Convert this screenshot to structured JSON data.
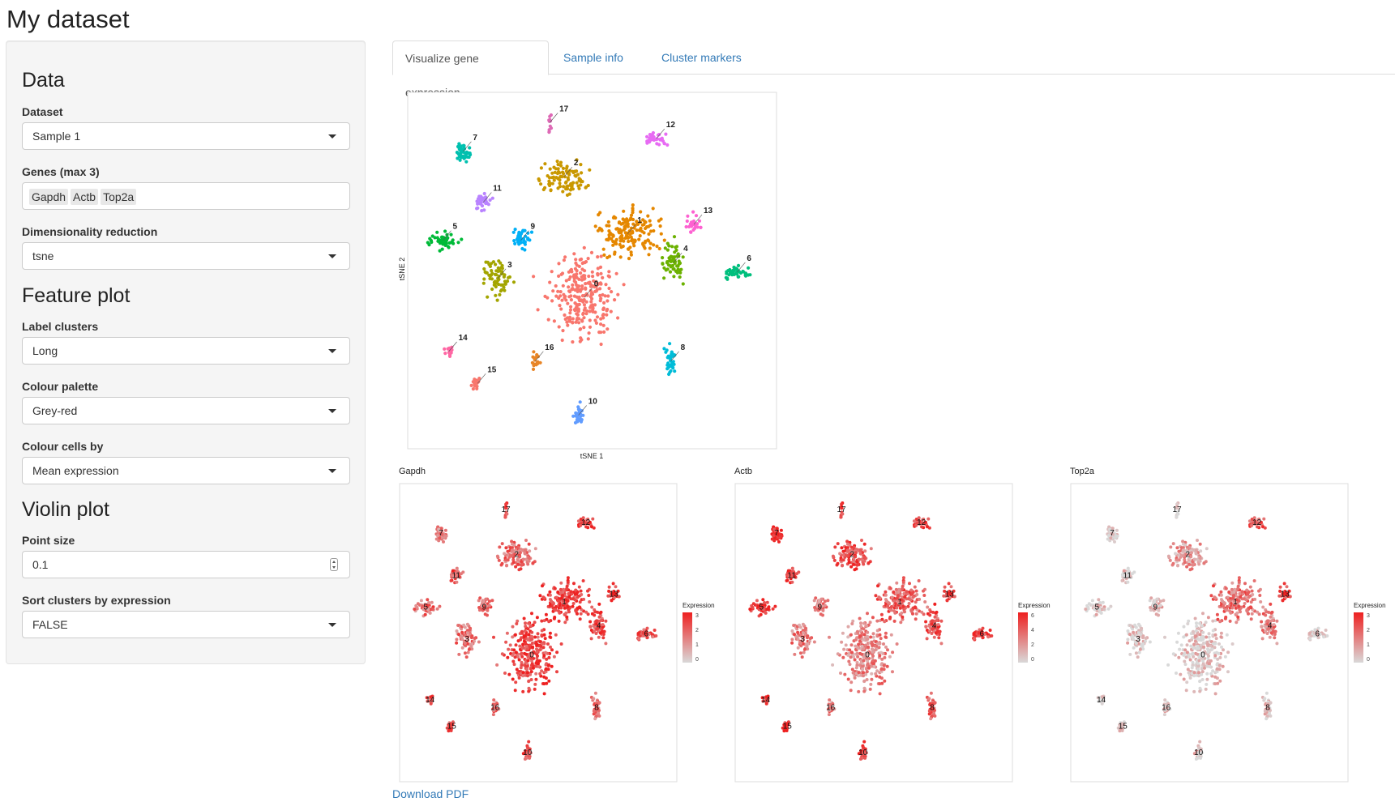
{
  "page": {
    "title": "My dataset"
  },
  "sidebar": {
    "data_section": {
      "title": "Data",
      "dataset_label": "Dataset",
      "dataset_value": "Sample 1",
      "genes_label": "Genes (max 3)",
      "genes": [
        "Gapdh",
        "Actb",
        "Top2a"
      ],
      "dimred_label": "Dimensionality reduction",
      "dimred_value": "tsne"
    },
    "feature_section": {
      "title": "Feature plot",
      "label_clusters_label": "Label clusters",
      "label_clusters_value": "Long",
      "palette_label": "Colour palette",
      "palette_value": "Grey-red",
      "colour_by_label": "Colour cells by",
      "colour_by_value": "Mean expression"
    },
    "violin_section": {
      "title": "Violin plot",
      "point_size_label": "Point size",
      "point_size_value": "0.1",
      "sort_label": "Sort clusters by expression",
      "sort_value": "FALSE"
    }
  },
  "tabs": [
    {
      "label": "Visualize gene expression",
      "active": true
    },
    {
      "label": "Sample info",
      "active": false
    },
    {
      "label": "Cluster markers",
      "active": false
    }
  ],
  "main_plot": {
    "x_label": "tSNE 1",
    "y_label": "tSNE 2"
  },
  "feature_plots": [
    {
      "gene": "Gapdh",
      "legend_title": "Expression",
      "legend_ticks": [
        "3",
        "2",
        "1",
        "0"
      ]
    },
    {
      "gene": "Actb",
      "legend_title": "Expression",
      "legend_ticks": [
        "6",
        "4",
        "2",
        "0"
      ]
    },
    {
      "gene": "Top2a",
      "legend_title": "Expression",
      "legend_ticks": [
        "3",
        "2",
        "1",
        "0"
      ]
    }
  ],
  "download_label": "Download PDF",
  "chart_data": {
    "type": "scatter",
    "xlabel": "tSNE 1",
    "ylabel": "tSNE 2",
    "grid": false,
    "clusters": [
      {
        "id": "0",
        "color": "#F8766D",
        "center": [
          -3,
          -8
        ]
      },
      {
        "id": "1",
        "color": "#E58700",
        "center": [
          12,
          12
        ]
      },
      {
        "id": "2",
        "color": "#C99800",
        "center": [
          -10,
          30
        ]
      },
      {
        "id": "3",
        "color": "#A3A500",
        "center": [
          -33,
          -2
        ]
      },
      {
        "id": "4",
        "color": "#6BB100",
        "center": [
          28,
          3
        ]
      },
      {
        "id": "5",
        "color": "#00BA38",
        "center": [
          -52,
          10
        ]
      },
      {
        "id": "6",
        "color": "#00BF7D",
        "center": [
          50,
          0
        ]
      },
      {
        "id": "7",
        "color": "#00C0AF",
        "center": [
          -45,
          38
        ]
      },
      {
        "id": "8",
        "color": "#00BCD8",
        "center": [
          27,
          -28
        ]
      },
      {
        "id": "9",
        "color": "#00B0F6",
        "center": [
          -25,
          10
        ]
      },
      {
        "id": "10",
        "color": "#619CFF",
        "center": [
          -5,
          -45
        ]
      },
      {
        "id": "11",
        "color": "#B983FF",
        "center": [
          -38,
          22
        ]
      },
      {
        "id": "12",
        "color": "#E76BF3",
        "center": [
          22,
          42
        ]
      },
      {
        "id": "13",
        "color": "#FD61D1",
        "center": [
          35,
          15
        ]
      },
      {
        "id": "14",
        "color": "#FF67A4",
        "center": [
          -50,
          -25
        ]
      },
      {
        "id": "15",
        "color": "#F8766D",
        "center": [
          -40,
          -35
        ]
      },
      {
        "id": "16",
        "color": "#E88526",
        "center": [
          -20,
          -28
        ]
      },
      {
        "id": "17",
        "color": "#DE6AB6",
        "center": [
          -15,
          47
        ]
      }
    ]
  }
}
